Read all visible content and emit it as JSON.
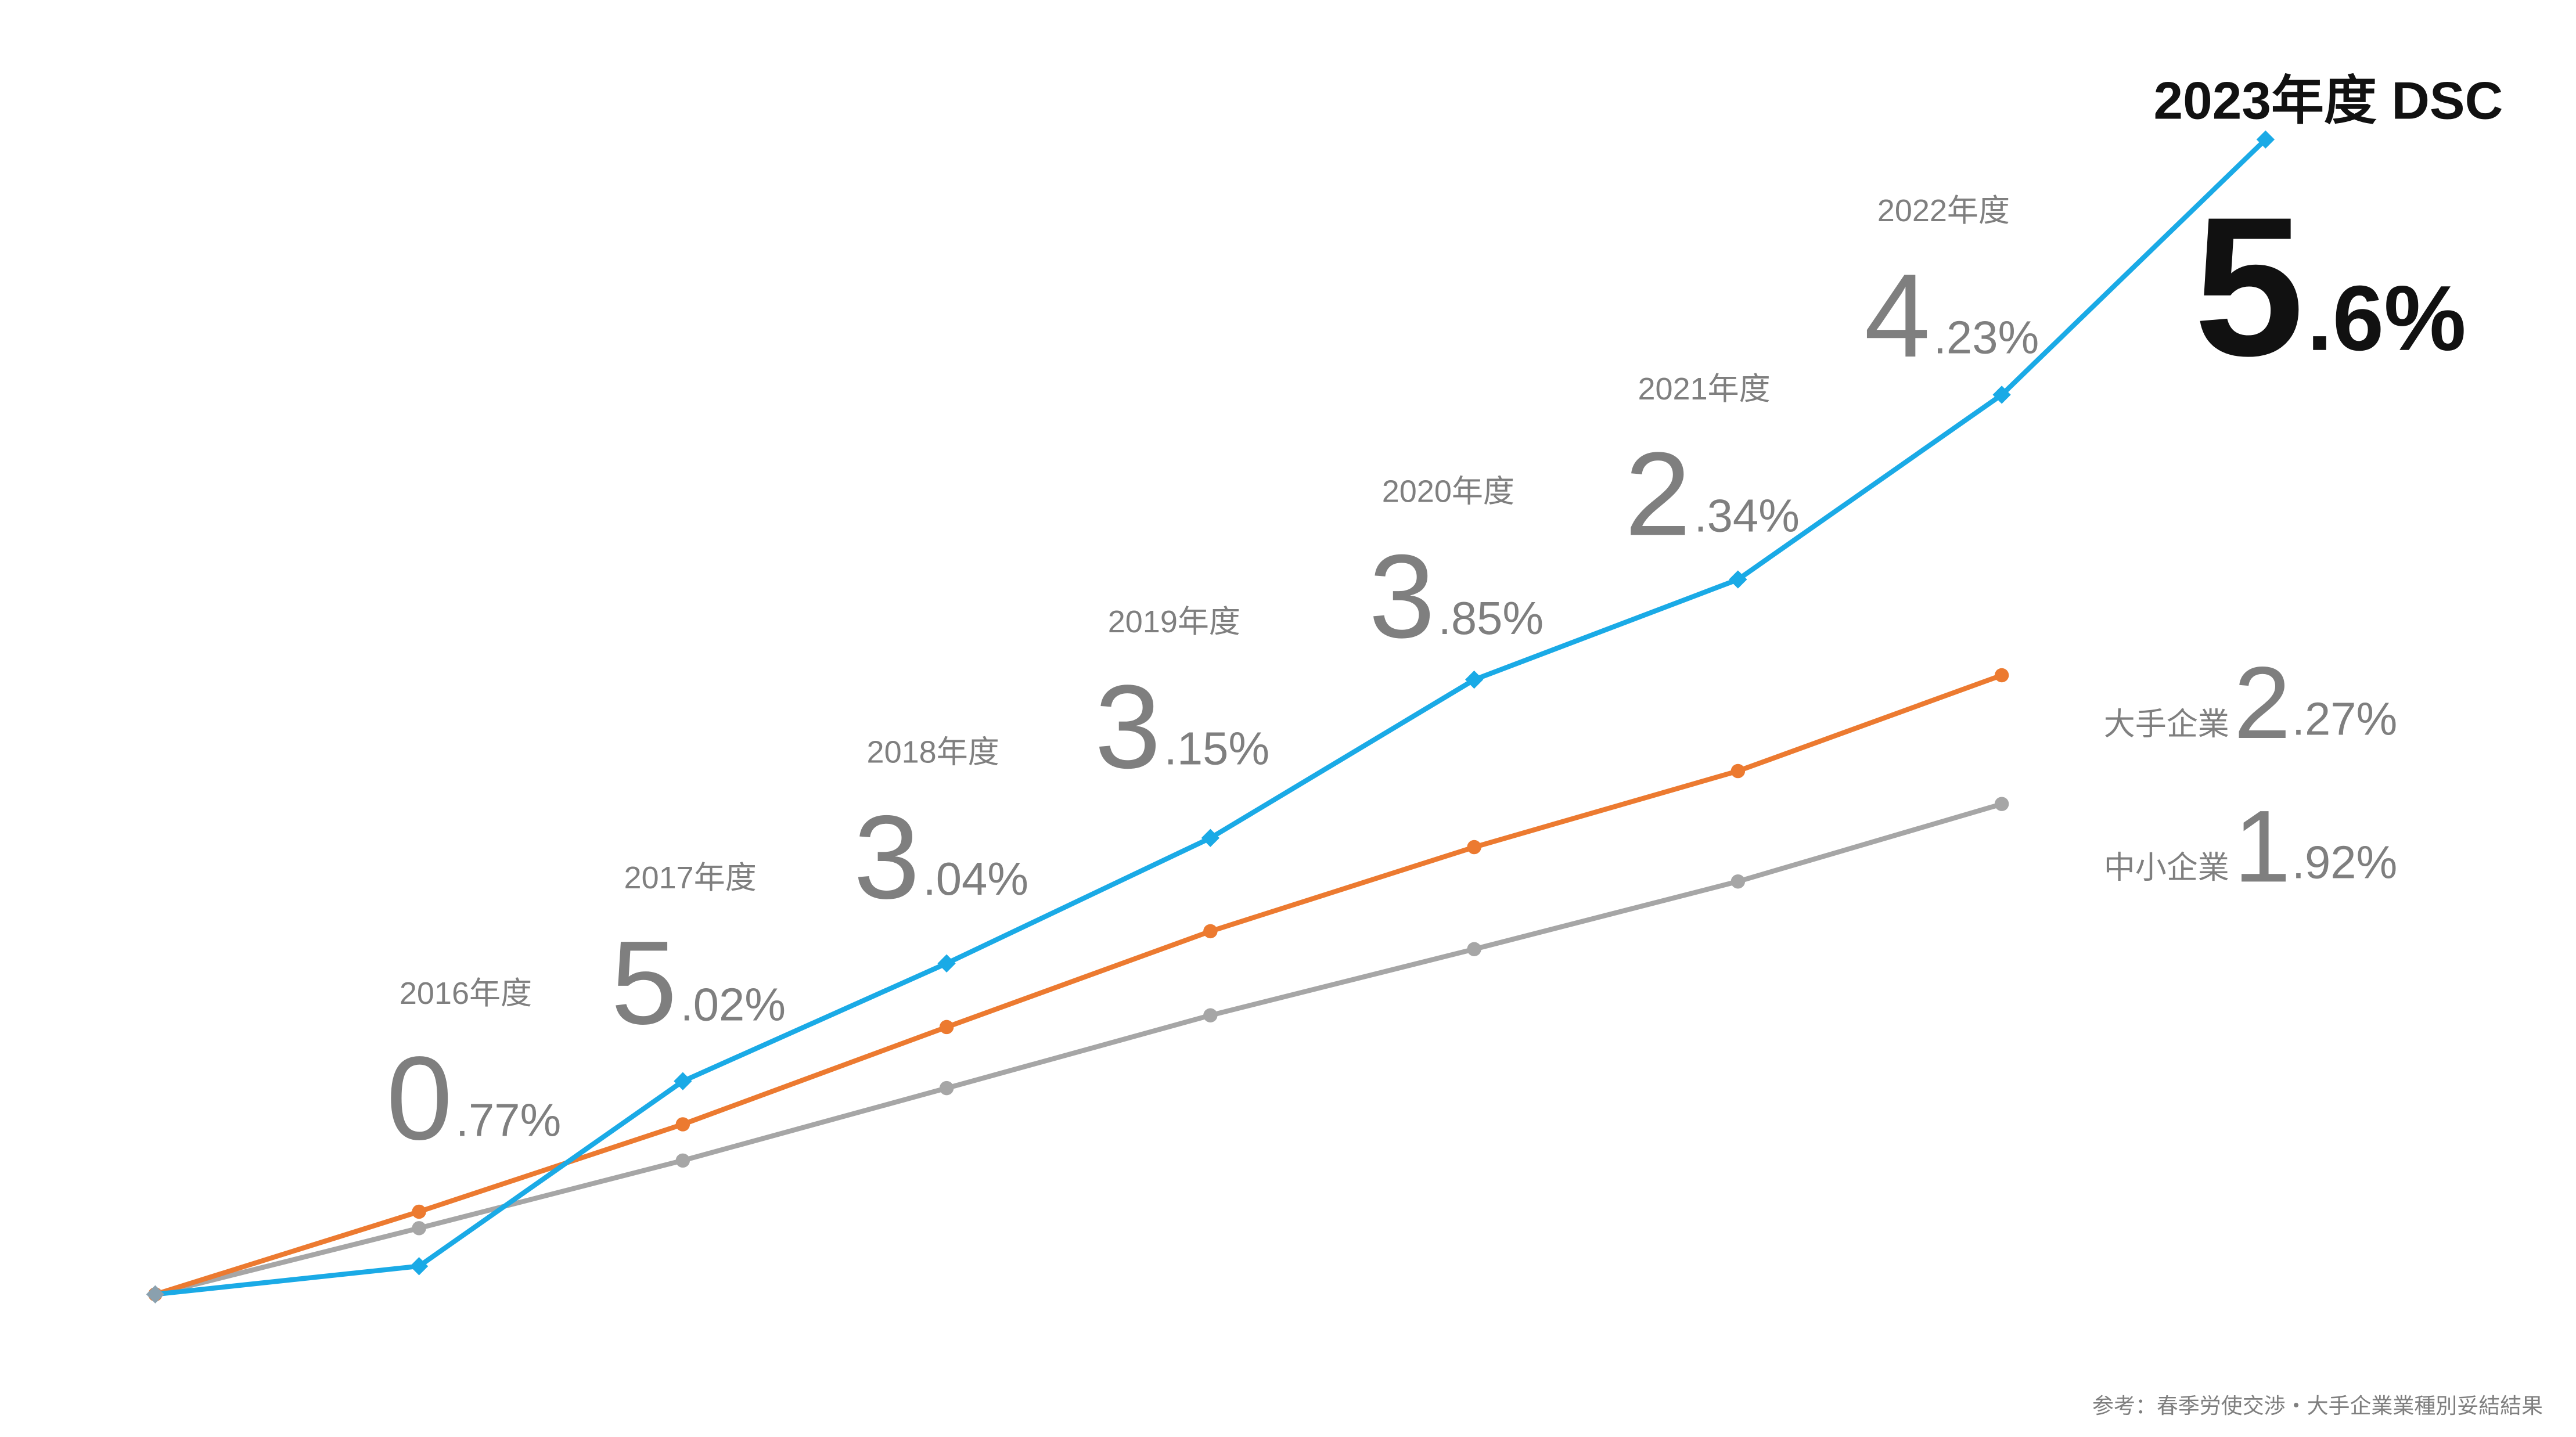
{
  "chart_data": {
    "type": "line",
    "title": "2023年度 DSC",
    "title_whole": "5",
    "title_fraction": ".6%",
    "categories": [
      null,
      null,
      null,
      null,
      null,
      null,
      null,
      null,
      null
    ],
    "series": [
      {
        "color": "#1aaae6",
        "marker": "diamond",
        "values": [
          100,
          100.77,
          105.83,
          109.05,
          112.48,
          116.81,
          119.55,
          124.6,
          131.58
        ]
      },
      {
        "name": "大手企業",
        "whole": "2",
        "fraction": ".27%",
        "color": "#ec7a30",
        "marker": "circle",
        "values": [
          100,
          102.26,
          104.65,
          107.31,
          109.93,
          112.23,
          114.31,
          116.93,
          null
        ]
      },
      {
        "name": "中小企業",
        "whole": "1",
        "fraction": ".92%",
        "color": "#a6a6a6",
        "marker": "circle",
        "values": [
          100,
          101.81,
          103.66,
          105.64,
          107.63,
          109.44,
          111.29,
          113.41,
          null
        ]
      }
    ],
    "ylim": [
      95,
      135
    ],
    "annotations": [
      {
        "year": "2016年度",
        "whole": "0",
        "fraction": ".77%"
      },
      {
        "year": "2017年度",
        "whole": "5",
        "fraction": ".02%"
      },
      {
        "year": "2018年度",
        "whole": "3",
        "fraction": ".04%"
      },
      {
        "year": "2019年度",
        "whole": "3",
        "fraction": ".15%"
      },
      {
        "year": "2020年度",
        "whole": "3",
        "fraction": ".85%"
      },
      {
        "year": "2021年度",
        "whole": "2",
        "fraction": ".34%"
      },
      {
        "year": "2022年度",
        "whole": "4",
        "fraction": ".23%"
      }
    ],
    "source": "参考：春季労使交渉・大手企業業種別妥結結果"
  }
}
